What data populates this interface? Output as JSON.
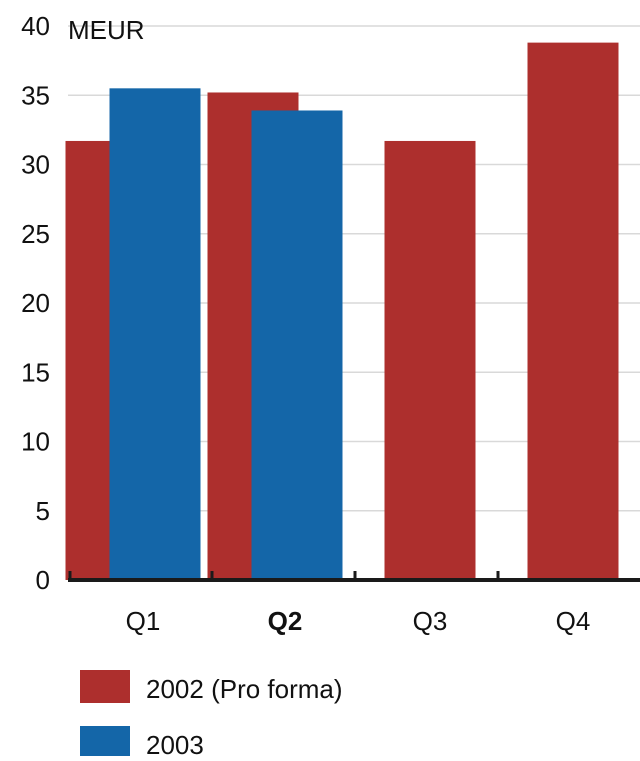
{
  "chart_data": {
    "type": "bar",
    "unit_label": "MEUR",
    "categories": [
      "Q1",
      "Q2",
      "Q3",
      "Q4"
    ],
    "highlighted_category": "Q2",
    "y_ticks": [
      "0",
      "5",
      "10",
      "15",
      "20",
      "25",
      "30",
      "35",
      "40"
    ],
    "ylim": [
      0,
      40
    ],
    "grid": true,
    "legend_position": "bottom-left",
    "series": [
      {
        "name": "2002 (Pro forma)",
        "color": "#ad2f2d",
        "values": [
          31.7,
          35.2,
          31.7,
          38.8
        ]
      },
      {
        "name": "2003",
        "color": "#1466a8",
        "values": [
          35.5,
          33.9,
          null,
          null
        ]
      }
    ]
  }
}
